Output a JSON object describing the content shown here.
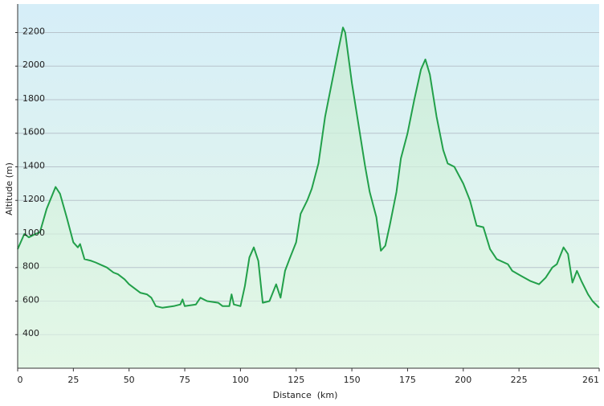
{
  "chart_data": {
    "type": "area",
    "x_label": "Distance  (km)",
    "y_label": "Altitude (m)",
    "color": "#22a04a",
    "x": [
      0,
      3,
      5,
      8,
      10,
      13,
      17,
      19,
      22,
      25,
      27,
      28,
      30,
      33,
      35,
      40,
      43,
      45,
      48,
      50,
      55,
      58,
      60,
      62,
      65,
      70,
      73,
      74,
      75,
      80,
      82,
      85,
      90,
      92,
      95,
      96,
      97,
      100,
      102,
      104,
      106,
      108,
      110,
      113,
      116,
      118,
      120,
      122,
      125,
      127,
      130,
      132,
      135,
      138,
      141,
      144,
      146,
      147,
      150,
      153,
      156,
      158,
      161,
      163,
      165,
      167,
      170,
      172,
      175,
      178,
      181,
      183,
      185,
      188,
      191,
      193,
      196,
      198,
      200,
      203,
      206,
      209,
      212,
      215,
      220,
      222,
      226,
      230,
      234,
      237,
      240,
      242,
      245,
      247,
      249,
      251,
      253,
      256,
      258,
      261
    ],
    "values": [
      910,
      1000,
      980,
      1000,
      1010,
      1150,
      1280,
      1240,
      1100,
      950,
      920,
      940,
      850,
      840,
      830,
      800,
      770,
      760,
      730,
      700,
      650,
      640,
      620,
      570,
      560,
      570,
      580,
      610,
      570,
      580,
      620,
      600,
      590,
      570,
      570,
      640,
      580,
      570,
      690,
      860,
      920,
      840,
      590,
      600,
      700,
      620,
      780,
      850,
      950,
      1120,
      1200,
      1270,
      1420,
      1700,
      1900,
      2100,
      2230,
      2200,
      1900,
      1650,
      1400,
      1250,
      1100,
      900,
      930,
      1050,
      1250,
      1450,
      1600,
      1800,
      1980,
      2040,
      1950,
      1700,
      1500,
      1420,
      1400,
      1350,
      1300,
      1200,
      1050,
      1040,
      910,
      850,
      820,
      780,
      750,
      720,
      700,
      740,
      800,
      820,
      920,
      880,
      710,
      780,
      720,
      640,
      600,
      560
    ],
    "xlim": [
      0,
      261
    ],
    "ylim": [
      200,
      2370
    ],
    "xticks": [
      0,
      25,
      50,
      75,
      100,
      125,
      150,
      175,
      200,
      225,
      261
    ],
    "yticks": [
      400,
      600,
      800,
      1000,
      1200,
      1400,
      1600,
      1800,
      2000,
      2200
    ],
    "grid": true
  }
}
